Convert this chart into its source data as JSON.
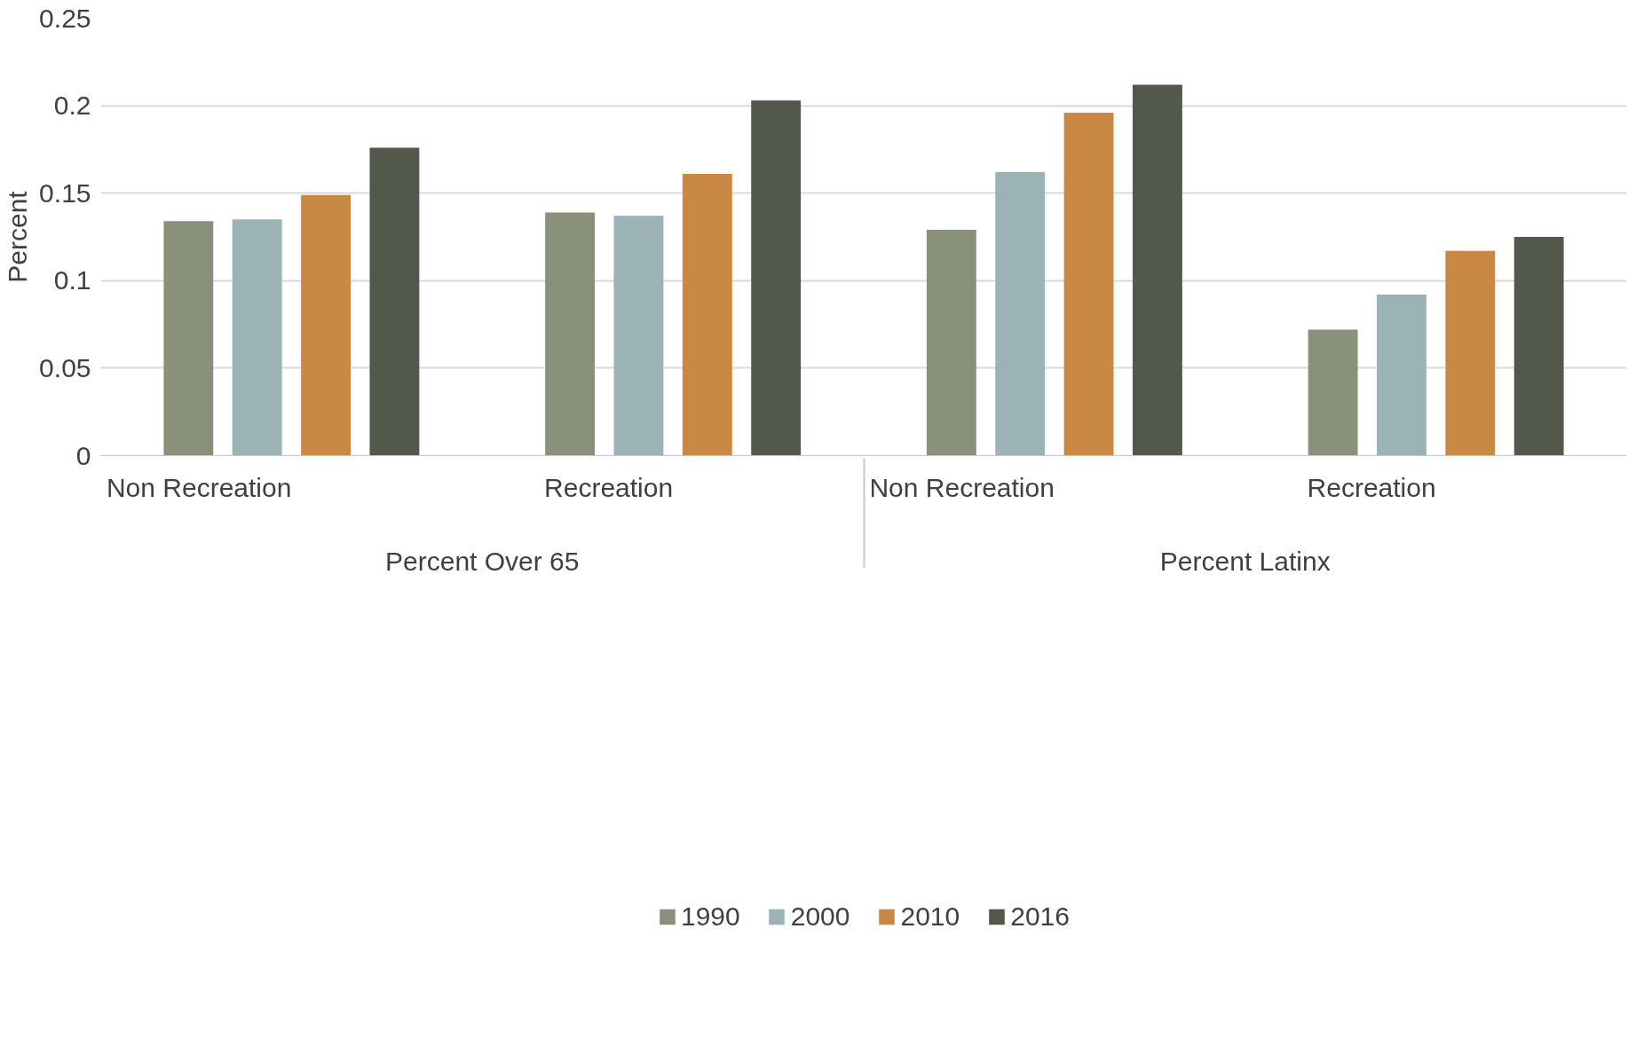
{
  "chart_data": {
    "type": "bar",
    "ylabel": "Percent",
    "categories": [
      "Non Recreation",
      "Recreation",
      "Non Recreation",
      "Recreation"
    ],
    "annotations": [
      "Percent Over 65",
      "Percent Latinx"
    ],
    "series": [
      {
        "name": "1990",
        "color": "#8a917a",
        "values": [
          0.134,
          0.139,
          0.129,
          0.072
        ]
      },
      {
        "name": "2000",
        "color": "#9bb3b7",
        "values": [
          0.135,
          0.137,
          0.162,
          0.092
        ]
      },
      {
        "name": "2010",
        "color": "#c98945",
        "values": [
          0.149,
          0.161,
          0.196,
          0.117
        ]
      },
      {
        "name": "2016",
        "color": "#52594a",
        "values": [
          0.176,
          0.203,
          0.212,
          0.125
        ]
      }
    ],
    "ylim": [
      0,
      0.25
    ],
    "yticks": [
      0,
      0.05,
      0.1,
      0.15,
      0.2,
      0.25
    ],
    "grid": "y",
    "legend": "bottom"
  }
}
